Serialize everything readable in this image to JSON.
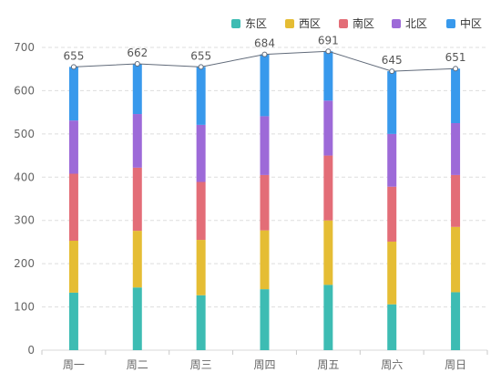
{
  "chart_data": {
    "type": "bar",
    "stacked": true,
    "categories": [
      "周一",
      "周二",
      "周三",
      "周四",
      "周五",
      "周六",
      "周日"
    ],
    "series": [
      {
        "name": "东区",
        "color": "#3dbcb3",
        "values": [
          133,
          145,
          127,
          141,
          151,
          106,
          134
        ]
      },
      {
        "name": "西区",
        "color": "#e5bd34",
        "values": [
          120,
          131,
          128,
          136,
          149,
          145,
          151
        ]
      },
      {
        "name": "南区",
        "color": "#e36d77",
        "values": [
          155,
          146,
          134,
          128,
          150,
          127,
          120
        ]
      },
      {
        "name": "北区",
        "color": "#9d6ad8",
        "values": [
          123,
          124,
          132,
          136,
          127,
          122,
          120
        ]
      },
      {
        "name": "中区",
        "color": "#3899ec",
        "values": [
          124,
          116,
          134,
          143,
          114,
          145,
          126
        ]
      }
    ],
    "totals": [
      655,
      662,
      655,
      684,
      691,
      645,
      651
    ],
    "total_line_color": "#616b7a",
    "ylim": [
      0,
      700
    ],
    "yticks": [
      0,
      100,
      200,
      300,
      400,
      500,
      600,
      700
    ],
    "grid": true,
    "legend": "top-right",
    "title": "",
    "xlabel": "",
    "ylabel": ""
  }
}
